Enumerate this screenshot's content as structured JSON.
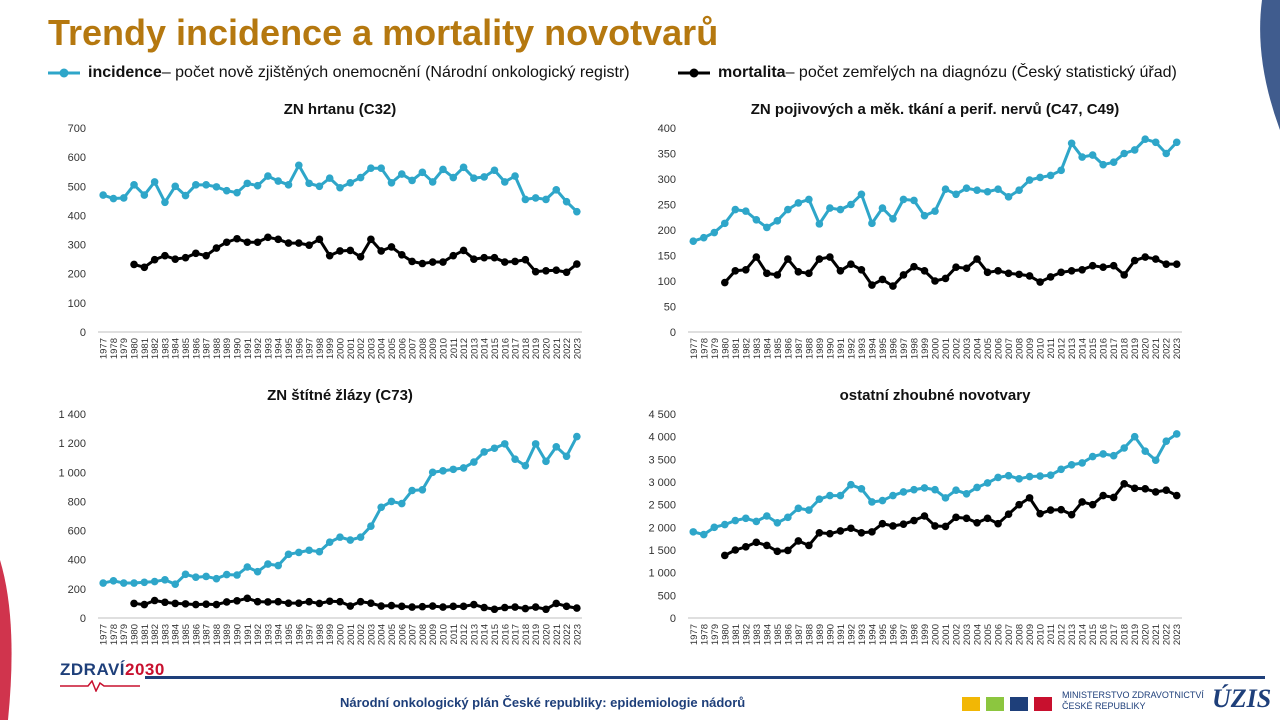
{
  "page": {
    "title": "Trendy incidence a mortality novotvarů",
    "footer": "Národní onkologický plán České republiky: epidemiologie nádorů",
    "logo_left_a": "ZDRAVÍ",
    "logo_left_b": "2030",
    "ministry_line1": "MINISTERSTVO ZDRAVOTNICTVÍ",
    "ministry_line2": "ČESKÉ REPUBLIKY",
    "uzis_logo": "ÚZIS",
    "icons": [
      "ekg-wave-icon",
      "coat-of-arms-icons",
      "uzis-logo-icon"
    ]
  },
  "legend": {
    "incidence_name": "incidence",
    "incidence_desc": " – počet nově zjištěných onemocnění (Národní onkologický registr)",
    "mortality_name": "mortalita",
    "mortality_desc": " – počet zemřelých na diagnózu (Český statistický úřad)"
  },
  "colors": {
    "title": "#b5780f",
    "incidence": "#2ea6c9",
    "mortality": "#000000",
    "axis": "#bfbfbf",
    "footer": "#1e3f7a"
  },
  "chart_data": [
    {
      "type": "line",
      "title": "ZN hrtanu (C32)",
      "ylim": [
        0,
        700
      ],
      "ytick_step": 100,
      "x": [
        1977,
        1978,
        1979,
        1980,
        1981,
        1982,
        1983,
        1984,
        1985,
        1986,
        1987,
        1988,
        1989,
        1990,
        1991,
        1992,
        1993,
        1994,
        1995,
        1996,
        1997,
        1998,
        1999,
        2000,
        2001,
        2002,
        2003,
        2004,
        2005,
        2006,
        2007,
        2008,
        2009,
        2010,
        2011,
        2012,
        2013,
        2014,
        2015,
        2016,
        2017,
        2018,
        2019,
        2020,
        2021,
        2022,
        2023
      ],
      "series": [
        {
          "name": "incidence",
          "values": [
            470,
            458,
            460,
            505,
            470,
            515,
            445,
            500,
            468,
            505,
            505,
            498,
            485,
            478,
            510,
            502,
            535,
            518,
            505,
            572,
            510,
            500,
            528,
            495,
            512,
            530,
            562,
            562,
            512,
            542,
            520,
            548,
            515,
            558,
            530,
            565,
            528,
            532,
            555,
            515,
            535,
            455,
            460,
            455,
            488,
            447,
            413
          ]
        },
        {
          "name": "mortalita",
          "values": [
            null,
            null,
            null,
            232,
            222,
            248,
            262,
            250,
            255,
            270,
            262,
            288,
            308,
            320,
            308,
            308,
            325,
            318,
            305,
            305,
            298,
            318,
            262,
            278,
            280,
            258,
            318,
            278,
            292,
            265,
            242,
            235,
            240,
            240,
            262,
            280,
            250,
            255,
            255,
            240,
            242,
            248,
            207,
            210,
            212,
            205,
            233
          ]
        }
      ]
    },
    {
      "type": "line",
      "title": "ZN pojivových a měk. tkání a perif. nervů (C47, C49)",
      "ylim": [
        0,
        400
      ],
      "ytick_step": 50,
      "x": [
        1977,
        1978,
        1979,
        1980,
        1981,
        1982,
        1983,
        1984,
        1985,
        1986,
        1987,
        1988,
        1989,
        1990,
        1991,
        1992,
        1993,
        1994,
        1995,
        1996,
        1997,
        1998,
        1999,
        2000,
        2001,
        2002,
        2003,
        2004,
        2005,
        2006,
        2007,
        2008,
        2009,
        2010,
        2011,
        2012,
        2013,
        2014,
        2015,
        2016,
        2017,
        2018,
        2019,
        2020,
        2021,
        2022,
        2023
      ],
      "series": [
        {
          "name": "incidence",
          "values": [
            178,
            185,
            195,
            213,
            240,
            237,
            220,
            205,
            218,
            240,
            253,
            260,
            212,
            243,
            240,
            250,
            270,
            213,
            243,
            222,
            260,
            258,
            228,
            237,
            280,
            270,
            282,
            278,
            275,
            280,
            265,
            278,
            298,
            303,
            307,
            317,
            370,
            343,
            347,
            328,
            333,
            350,
            357,
            378,
            372,
            350,
            372
          ]
        },
        {
          "name": "mortalita",
          "values": [
            null,
            null,
            null,
            97,
            120,
            122,
            147,
            115,
            112,
            143,
            118,
            115,
            143,
            147,
            120,
            133,
            122,
            92,
            103,
            90,
            112,
            128,
            120,
            100,
            105,
            127,
            125,
            143,
            117,
            120,
            115,
            113,
            110,
            98,
            108,
            117,
            120,
            122,
            130,
            127,
            130,
            112,
            140,
            147,
            143,
            133,
            133
          ]
        }
      ]
    },
    {
      "type": "line",
      "title": "ZN štítné žlázy (C73)",
      "ylim": [
        0,
        1400
      ],
      "ytick_step": 200,
      "x": [
        1977,
        1978,
        1979,
        1980,
        1981,
        1982,
        1983,
        1984,
        1985,
        1986,
        1987,
        1988,
        1989,
        1990,
        1991,
        1992,
        1993,
        1994,
        1995,
        1996,
        1997,
        1998,
        1999,
        2000,
        2001,
        2002,
        2003,
        2004,
        2005,
        2006,
        2007,
        2008,
        2009,
        2010,
        2011,
        2012,
        2013,
        2014,
        2015,
        2016,
        2017,
        2018,
        2019,
        2020,
        2021,
        2022,
        2023
      ],
      "series": [
        {
          "name": "incidence",
          "values": [
            240,
            255,
            240,
            240,
            245,
            250,
            262,
            232,
            300,
            280,
            285,
            270,
            298,
            295,
            350,
            318,
            370,
            360,
            437,
            450,
            465,
            455,
            520,
            555,
            535,
            555,
            630,
            760,
            800,
            785,
            875,
            880,
            1000,
            1010,
            1020,
            1030,
            1070,
            1140,
            1165,
            1195,
            1090,
            1045,
            1195,
            1075,
            1175,
            1110,
            1245
          ]
        },
        {
          "name": "mortalita",
          "values": [
            null,
            null,
            null,
            100,
            92,
            120,
            108,
            100,
            97,
            92,
            95,
            92,
            110,
            118,
            135,
            112,
            110,
            112,
            102,
            102,
            112,
            100,
            115,
            112,
            82,
            112,
            102,
            82,
            85,
            80,
            75,
            78,
            82,
            75,
            80,
            80,
            92,
            72,
            60,
            72,
            75,
            65,
            75,
            60,
            100,
            80,
            68
          ]
        }
      ]
    },
    {
      "type": "line",
      "title": "ostatní zhoubné novotvary",
      "ylim": [
        0,
        4500
      ],
      "ytick_step": 500,
      "x": [
        1977,
        1978,
        1979,
        1980,
        1981,
        1982,
        1983,
        1984,
        1985,
        1986,
        1987,
        1988,
        1989,
        1990,
        1991,
        1992,
        1993,
        1994,
        1995,
        1996,
        1997,
        1998,
        1999,
        2000,
        2001,
        2002,
        2003,
        2004,
        2005,
        2006,
        2007,
        2008,
        2009,
        2010,
        2011,
        2012,
        2013,
        2014,
        2015,
        2016,
        2017,
        2018,
        2019,
        2020,
        2021,
        2022,
        2023
      ],
      "series": [
        {
          "name": "incidence",
          "values": [
            1900,
            1840,
            2000,
            2060,
            2150,
            2200,
            2130,
            2250,
            2100,
            2220,
            2420,
            2380,
            2620,
            2700,
            2700,
            2940,
            2850,
            2560,
            2590,
            2700,
            2780,
            2830,
            2870,
            2830,
            2650,
            2820,
            2740,
            2880,
            2980,
            3100,
            3140,
            3070,
            3120,
            3130,
            3150,
            3280,
            3380,
            3420,
            3560,
            3620,
            3580,
            3750,
            4000,
            3680,
            3480,
            3900,
            4060
          ]
        },
        {
          "name": "mortalita",
          "values": [
            null,
            null,
            null,
            1380,
            1500,
            1570,
            1670,
            1600,
            1470,
            1490,
            1700,
            1600,
            1880,
            1860,
            1920,
            1980,
            1880,
            1900,
            2080,
            2030,
            2070,
            2150,
            2250,
            2030,
            2020,
            2220,
            2200,
            2100,
            2200,
            2080,
            2290,
            2500,
            2650,
            2300,
            2380,
            2390,
            2280,
            2560,
            2500,
            2700,
            2660,
            2960,
            2860,
            2850,
            2780,
            2820,
            2700
          ]
        }
      ]
    }
  ]
}
